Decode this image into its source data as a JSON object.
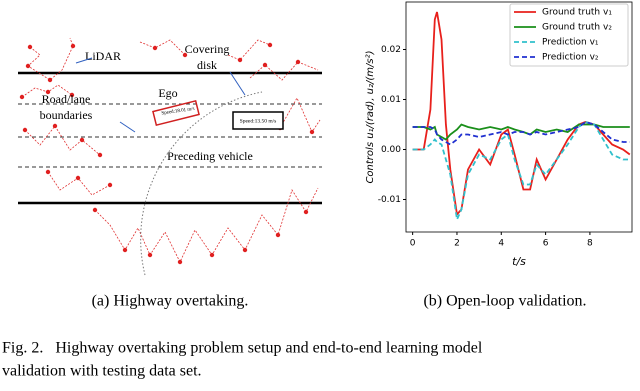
{
  "panel_a": {
    "labels": {
      "lidar": "LiDAR",
      "covering_1": "Covering",
      "covering_2": "disk",
      "road_1": "Road/lane",
      "road_2": "boundaries",
      "ego": "Ego",
      "ego_speed": "Speed:18.01 m/s",
      "prec_speed": "Speed:13.50 m/s",
      "preceding": "Preceding vehicle"
    },
    "caption": "(a) Highway overtaking."
  },
  "panel_b": {
    "caption": "(b) Open-loop validation."
  },
  "figure_caption": [
    "Fig. 2.   Highway overtaking problem setup and end-to-end learning model",
    "validation with testing data set."
  ],
  "chart_data": {
    "type": "line",
    "ylabel": "Controls u₁/(rad), u₂/(m/s²)",
    "xlabel": "t/s",
    "x": [
      0,
      0.5,
      0.8,
      1.0,
      1.1,
      1.3,
      1.5,
      1.7,
      2.0,
      2.2,
      2.5,
      3,
      3.5,
      4,
      4.3,
      4.6,
      5,
      5.3,
      5.6,
      6,
      6.5,
      7,
      7.5,
      7.8,
      8.2,
      8.6,
      9,
      9.5,
      9.8
    ],
    "series": [
      {
        "name": "Ground truth v₁",
        "color": "#e8201c",
        "linestyle": "solid",
        "values": [
          0,
          0,
          0.008,
          0.026,
          0.0275,
          0.022,
          0.005,
          -0.004,
          -0.013,
          -0.012,
          -0.004,
          0,
          -0.003,
          0.003,
          0.004,
          -0.001,
          -0.008,
          -0.008,
          -0.002,
          -0.006,
          -0.002,
          0.002,
          0.005,
          0.0055,
          0.005,
          0.003,
          0.001,
          0,
          -0.001
        ]
      },
      {
        "name": "Ground truth v₂",
        "color": "#1a8f1a",
        "linestyle": "solid",
        "values": [
          0.0045,
          0.0045,
          0.004,
          0.0045,
          0.003,
          0.0025,
          0.002,
          0.003,
          0.004,
          0.005,
          0.0045,
          0.004,
          0.0045,
          0.004,
          0.0045,
          0.004,
          0.0035,
          0.003,
          0.004,
          0.0035,
          0.004,
          0.0035,
          0.005,
          0.005,
          0.005,
          0.0045,
          0.0045,
          0.0045,
          0.0045
        ]
      },
      {
        "name": "Prediction v₁",
        "color": "#30c0cc",
        "linestyle": "dashed",
        "values": [
          0,
          0,
          0.001,
          0.002,
          0.0015,
          0.001,
          -0.002,
          -0.005,
          -0.014,
          -0.012,
          -0.005,
          -0.001,
          -0.002,
          0.002,
          0.003,
          -0.002,
          -0.007,
          -0.007,
          -0.003,
          -0.005,
          -0.002,
          0.001,
          0.0045,
          0.0055,
          0.005,
          0.002,
          -0.001,
          -0.002,
          -0.002
        ]
      },
      {
        "name": "Prediction v₂",
        "color": "#2030d0",
        "linestyle": "dashed",
        "values": [
          0.0045,
          0.0045,
          0.0045,
          0.004,
          0.003,
          0.002,
          0.0015,
          0.001,
          0.002,
          0.003,
          0.003,
          0.0025,
          0.003,
          0.0035,
          0.003,
          0.0035,
          0.0035,
          0.003,
          0.0035,
          0.003,
          0.0035,
          0.004,
          0.0045,
          0.0055,
          0.005,
          0.0035,
          0.002,
          0.0015,
          0.0015
        ]
      }
    ],
    "xlim": [
      -0.3,
      9.9
    ],
    "ylim": [
      -0.0165,
      0.0295
    ],
    "xticks": [
      0,
      2,
      4,
      6,
      8
    ],
    "yticks": [
      -0.01,
      {
        "value": 0,
        "label": "0.00"
      },
      0.01,
      0.02
    ],
    "legend": "upper right"
  }
}
